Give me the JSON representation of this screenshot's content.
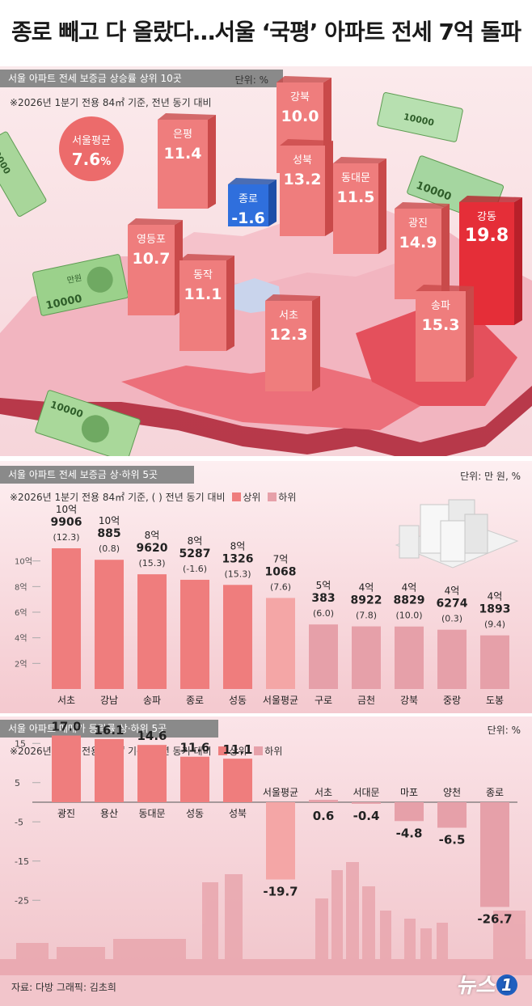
{
  "title": "종로 빼고 다 올랐다…서울 ‘국평’ 아파트 전세 7억 돌파",
  "colors": {
    "up": "#ef7d7d",
    "down": "#e6a0a9",
    "avg": "#f4a6a6",
    "jongno": "#2f6fdd",
    "gangdong": "#e52e38"
  },
  "section1": {
    "header": "서울 아파트 전세 보증금 상승률 상위 10곳",
    "unit": "단위: %",
    "note": "※2026년 1분기 전용 84㎡ 기준, 전년 동기 대비",
    "avg_label": "서울평균",
    "avg_value": "7.6",
    "avg_suffix": "%",
    "districts": [
      {
        "name": "강북",
        "value": "10.0"
      },
      {
        "name": "은평",
        "value": "11.4"
      },
      {
        "name": "종로",
        "value": "-1.6"
      },
      {
        "name": "성북",
        "value": "13.2"
      },
      {
        "name": "동대문",
        "value": "11.5"
      },
      {
        "name": "광진",
        "value": "14.9"
      },
      {
        "name": "강동",
        "value": "19.8"
      },
      {
        "name": "영등포",
        "value": "10.7"
      },
      {
        "name": "동작",
        "value": "11.1"
      },
      {
        "name": "서초",
        "value": "12.3"
      },
      {
        "name": "송파",
        "value": "15.3"
      }
    ],
    "banknote_label": "10000",
    "banknote_word": "만원"
  },
  "section2": {
    "header": "서울 아파트 전세 보증금 상·하위 5곳",
    "unit": "단위: 만 원, %",
    "note": "※2026년 1분기 전용 84㎡ 기준, ( ) 전년 동기 대비",
    "legend": [
      "상위",
      "하위"
    ]
  },
  "section3": {
    "header": "서울 아파트 매매가 등락률 상·하위 5곳",
    "unit": "단위: %",
    "note": "※2026년 1분기 전용 84㎡ 기준, 전년 동기 대비",
    "legend": [
      "상위",
      "하위"
    ]
  },
  "chart_data": [
    {
      "type": "bar",
      "title": "서울 아파트 전세 보증금 상·하위 5곳",
      "ylim": [
        0,
        12
      ],
      "yticks": [
        "2억",
        "4억",
        "6억",
        "8억",
        "10억"
      ],
      "categories": [
        "서초",
        "강남",
        "송파",
        "종로",
        "성동",
        "서울평균",
        "구로",
        "금천",
        "강북",
        "중랑",
        "도봉"
      ],
      "value_labels": [
        [
          "10억",
          "9906"
        ],
        [
          "10억",
          "885"
        ],
        [
          "8억",
          "9620"
        ],
        [
          "8억",
          "5287"
        ],
        [
          "8억",
          "1326"
        ],
        [
          "7억",
          "1068"
        ],
        [
          "5억",
          "383"
        ],
        [
          "4억",
          "8922"
        ],
        [
          "4억",
          "8829"
        ],
        [
          "4억",
          "6274"
        ],
        [
          "4억",
          "1893"
        ]
      ],
      "change_labels": [
        "(12.3)",
        "(0.8)",
        "(15.3)",
        "(-1.6)",
        "(15.3)",
        "(7.6)",
        "(6.0)",
        "(7.8)",
        "(10.0)",
        "(0.3)",
        "(9.4)"
      ],
      "values": [
        10.99,
        10.09,
        8.96,
        8.53,
        8.13,
        7.11,
        5.04,
        4.89,
        4.88,
        4.63,
        4.19
      ],
      "groups": [
        "up",
        "up",
        "up",
        "up",
        "up",
        "avg",
        "down",
        "down",
        "down",
        "down",
        "down"
      ]
    },
    {
      "type": "bar",
      "title": "서울 아파트 매매가 등락률 상·하위 5곳",
      "ylim": [
        -30,
        20
      ],
      "yticks": [
        "15",
        "5",
        "-5",
        "-15",
        "-25"
      ],
      "categories": [
        "광진",
        "용산",
        "동대문",
        "성동",
        "성북",
        "서울평균",
        "서초",
        "서대문",
        "마포",
        "양천",
        "종로"
      ],
      "values": [
        17.0,
        16.1,
        14.6,
        11.6,
        11.1,
        -19.7,
        0.6,
        -0.4,
        -4.8,
        -6.5,
        -26.7
      ],
      "labels": [
        "17.0",
        "16.1",
        "14.6",
        "11.6",
        "11.1",
        "-19.7",
        "0.6",
        "-0.4",
        "-4.8",
        "-6.5",
        "-26.7"
      ],
      "groups": [
        "up",
        "up",
        "up",
        "up",
        "up",
        "avg",
        "down",
        "down",
        "down",
        "down",
        "down"
      ]
    }
  ],
  "footer": "자료: 다방   그래픽: 김초희",
  "logo": "뉴스",
  "logo_mark": "1"
}
